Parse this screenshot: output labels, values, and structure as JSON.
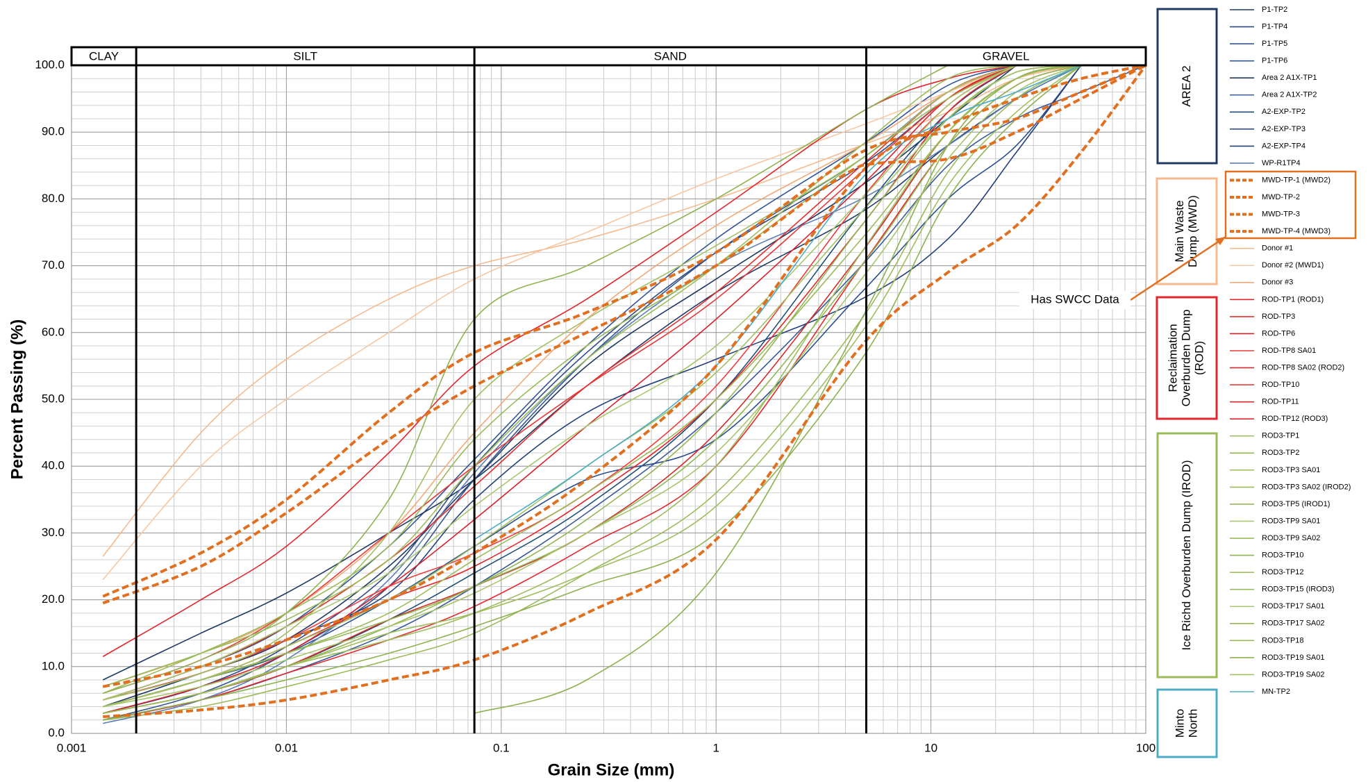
{
  "chart_data": {
    "type": "line",
    "x_label": "Grain Size (mm)",
    "y_label": "Percent Passing (%)",
    "x_log": true,
    "grid": true,
    "minor_grid": true,
    "xlim": [
      0.001,
      100
    ],
    "xticks": [
      0.001,
      0.01,
      0.1,
      1,
      10,
      100
    ],
    "ylim": [
      0,
      100
    ],
    "yticks": [
      {
        "value": 0,
        "label": "0.0"
      },
      {
        "value": 10,
        "label": "10.0"
      },
      {
        "value": 20,
        "label": "20.0"
      },
      {
        "value": 30,
        "label": "30.0"
      },
      {
        "value": 40,
        "label": "40.0"
      },
      {
        "value": 50,
        "label": "50.0"
      },
      {
        "value": 60,
        "label": "60.0"
      },
      {
        "value": 70,
        "label": "70.0"
      },
      {
        "value": 80,
        "label": "80.0"
      },
      {
        "value": 90,
        "label": "90.0"
      },
      {
        "value": 100,
        "label": "100.0"
      }
    ],
    "zones": [
      "CLAY",
      "SILT",
      "SAND",
      "GRAVEL"
    ],
    "zone_boundaries": [
      0.002,
      0.075,
      5
    ],
    "annotation": "Has SWCC Data",
    "legend_groups": [
      {
        "label": [
          "AREA 2"
        ]
      },
      {
        "label": [
          "Main Waste",
          "Dump (MWD)"
        ]
      },
      {
        "label": [
          "Reclaimation",
          "Overburden Dump",
          "(ROD)"
        ]
      },
      {
        "label": [
          "Ice Richd Overburden Dump (IROD)"
        ]
      },
      {
        "label": [
          "Minto",
          "North"
        ]
      }
    ],
    "x": [
      0.0014,
      0.004,
      0.01,
      0.03,
      0.075,
      0.25,
      1,
      4.75,
      12,
      25,
      50,
      100
    ],
    "series": [
      {
        "name": "P1-TP2",
        "color": "#1f3864",
        "values": [
          4,
          9,
          14,
          25,
          38,
          55,
          68,
          82,
          92,
          100,
          null,
          null
        ]
      },
      {
        "name": "P1-TP4",
        "color": "#2e4a86",
        "values": [
          3,
          7,
          13,
          24,
          40,
          57,
          72,
          85,
          95,
          100,
          null,
          null
        ]
      },
      {
        "name": "P1-TP5",
        "color": "#34558f",
        "values": [
          2,
          6,
          12,
          22,
          38,
          56,
          72,
          86,
          96,
          100,
          null,
          null
        ]
      },
      {
        "name": "P1-TP6",
        "color": "#2f5597",
        "values": [
          5,
          10,
          16,
          28,
          41,
          58,
          74,
          88,
          97,
          100,
          null,
          null
        ]
      },
      {
        "name": "Area 2 A1X-TP1",
        "color": "#203864",
        "values": [
          8,
          15,
          21,
          30,
          38,
          52,
          66,
          78,
          88,
          95,
          100,
          null
        ]
      },
      {
        "name": "Area 2 A1X-TP2",
        "color": "#3b5a9a",
        "values": [
          2,
          5,
          9,
          15,
          22,
          33,
          48,
          70,
          85,
          92,
          96,
          100
        ]
      },
      {
        "name": "A2-EXP-TP2",
        "color": "#1f4e79",
        "values": [
          3,
          6,
          10,
          17,
          24,
          34,
          50,
          78,
          93,
          100,
          null,
          null
        ]
      },
      {
        "name": "A2-EXP-TP3",
        "color": "#2a4d8f",
        "values": [
          4,
          8,
          12,
          20,
          28,
          38,
          44,
          66,
          80,
          88,
          100,
          null
        ]
      },
      {
        "name": "A2-EXP-TP4",
        "color": "#24407a",
        "values": [
          5,
          9,
          14,
          21,
          35,
          48,
          56,
          65,
          74,
          87,
          100,
          null
        ]
      },
      {
        "name": "WP-R1TP4",
        "color": "#5b7fb5",
        "values": [
          1.5,
          5,
          11,
          23,
          39,
          56,
          70,
          80,
          88,
          95,
          100,
          null
        ]
      },
      {
        "name": "MWD-TP-1 (MWD2)",
        "color": "#e07020",
        "dashed": true,
        "values": [
          20.5,
          27,
          35,
          48,
          57,
          63,
          72,
          87,
          90,
          92,
          96,
          100
        ]
      },
      {
        "name": "MWD-TP-2",
        "color": "#e07020",
        "dashed": true,
        "values": [
          19.5,
          25,
          33,
          44,
          52,
          60,
          70,
          85,
          86,
          90,
          95,
          100
        ]
      },
      {
        "name": "MWD-TP-3",
        "color": "#e07020",
        "dashed": true,
        "values": [
          7,
          10,
          14,
          20,
          27,
          38,
          55,
          84,
          91,
          95,
          98,
          100
        ]
      },
      {
        "name": "MWD-TP-4 (MWD3)",
        "color": "#e07020",
        "dashed": true,
        "values": [
          2.5,
          3.5,
          5,
          8,
          11,
          18,
          29,
          58,
          69,
          76,
          87,
          100
        ]
      },
      {
        "name": "Donor #1",
        "color": "#f5b98c",
        "values": [
          26.5,
          45,
          56,
          65,
          70,
          74,
          80,
          88,
          93,
          98,
          100,
          null
        ]
      },
      {
        "name": "Donor #2 (MWD1)",
        "color": "#f8c7a2",
        "values": [
          23,
          40,
          50,
          60,
          68,
          75,
          83,
          91,
          96,
          100,
          null,
          null
        ]
      },
      {
        "name": "Donor #3",
        "color": "#f2a978",
        "values": [
          7,
          12,
          18,
          30,
          45,
          62,
          76,
          88,
          96,
          100,
          null,
          null
        ]
      },
      {
        "name": "ROD-TP1 (ROD1)",
        "color": "#e3262b",
        "values": [
          11.5,
          20,
          28,
          42,
          55,
          65,
          78,
          93,
          98,
          100,
          null,
          null
        ]
      },
      {
        "name": "ROD-TP3",
        "color": "#e0312f",
        "values": [
          5,
          10,
          16,
          26,
          37,
          52,
          66,
          85,
          96,
          100,
          null,
          null
        ]
      },
      {
        "name": "ROD-TP6",
        "color": "#d9202a",
        "values": [
          3,
          7,
          12,
          22,
          32,
          46,
          62,
          82,
          95,
          100,
          null,
          null
        ]
      },
      {
        "name": "ROD-TP8 SA01",
        "color": "#e8383a",
        "values": [
          6,
          11,
          18,
          30,
          40,
          52,
          65,
          84,
          95,
          100,
          null,
          null
        ]
      },
      {
        "name": "ROD-TP8 SA02 (ROD2)",
        "color": "#e3262b",
        "values": [
          4,
          8,
          13,
          20,
          25,
          35,
          50,
          76,
          93,
          100,
          null,
          null
        ]
      },
      {
        "name": "ROD-TP10",
        "color": "#ef3b3b",
        "values": [
          5,
          9,
          14,
          22,
          27,
          36,
          52,
          80,
          94,
          100,
          null,
          null
        ]
      },
      {
        "name": "ROD-TP11",
        "color": "#d42a2a",
        "values": [
          3,
          6,
          10,
          17,
          22,
          30,
          45,
          72,
          90,
          98,
          100,
          null
        ]
      },
      {
        "name": "ROD-TP12 (ROD3)",
        "color": "#e5282e",
        "values": [
          2,
          5,
          9,
          14,
          19,
          28,
          40,
          70,
          88,
          97,
          100,
          null
        ]
      },
      {
        "name": "ROD3-TP1",
        "color": "#9bbb59",
        "values": [
          7,
          12,
          17,
          26,
          40,
          56,
          70,
          88,
          98,
          100,
          null,
          null
        ]
      },
      {
        "name": "ROD3-TP2",
        "color": "#8fb350",
        "values": [
          6,
          11,
          18,
          35,
          62,
          70,
          80,
          93,
          100,
          null,
          null,
          null
        ]
      },
      {
        "name": "ROD3-TP3 SA01",
        "color": "#a3c063",
        "values": [
          5,
          9,
          15,
          30,
          50,
          62,
          73,
          86,
          96,
          100,
          null,
          null
        ]
      },
      {
        "name": "ROD3-TP3 SA02 (IROD2)",
        "color": "#9bbb59",
        "values": [
          4,
          8,
          12,
          18,
          26,
          36,
          50,
          74,
          90,
          98,
          100,
          null
        ]
      },
      {
        "name": "ROD3-TP5 (IROD1)",
        "color": "#92b856",
        "values": [
          3,
          6,
          10,
          16,
          22,
          30,
          44,
          70,
          88,
          97,
          100,
          null
        ]
      },
      {
        "name": "ROD3-TP9 SA01",
        "color": "#a6c46a",
        "values": [
          4,
          7,
          11,
          16,
          21,
          30,
          42,
          68,
          86,
          96,
          100,
          null
        ]
      },
      {
        "name": "ROD3-TP9 SA02",
        "color": "#9bbb59",
        "values": [
          2,
          4,
          7,
          11,
          15,
          24,
          36,
          62,
          84,
          95,
          100,
          null
        ]
      },
      {
        "name": "ROD3-TP10",
        "color": "#8db14e",
        "values": [
          null,
          null,
          null,
          null,
          3,
          8,
          24,
          62,
          88,
          98,
          100,
          null
        ]
      },
      {
        "name": "ROD3-TP12",
        "color": "#9fbe5e",
        "values": [
          3,
          6,
          10,
          15,
          18,
          24,
          34,
          60,
          82,
          93,
          100,
          null
        ]
      },
      {
        "name": "ROD3-TP15 (IROD3)",
        "color": "#98ba57",
        "values": [
          6,
          12,
          18,
          28,
          44,
          58,
          70,
          86,
          95,
          100,
          null,
          null
        ]
      },
      {
        "name": "ROD3-TP17 SA01",
        "color": "#a8c66d",
        "values": [
          5,
          10,
          16,
          24,
          34,
          46,
          58,
          80,
          94,
          100,
          null,
          null
        ]
      },
      {
        "name": "ROD3-TP17 SA02",
        "color": "#93b654",
        "values": [
          4,
          8,
          12,
          17,
          22,
          32,
          48,
          76,
          92,
          99,
          100,
          null
        ]
      },
      {
        "name": "ROD3-TP18",
        "color": "#9bbb59",
        "values": [
          3,
          6,
          10,
          14,
          18,
          26,
          40,
          72,
          90,
          98,
          100,
          null
        ]
      },
      {
        "name": "ROD3-TP19 SA01",
        "color": "#8cb24f",
        "values": [
          2,
          5,
          8,
          12,
          16,
          22,
          30,
          56,
          80,
          92,
          100,
          null
        ]
      },
      {
        "name": "ROD3-TP19 SA02",
        "color": "#a2c162",
        "values": [
          4,
          8,
          13,
          20,
          28,
          40,
          54,
          78,
          92,
          99,
          100,
          null
        ]
      },
      {
        "name": "MN-TP2",
        "color": "#4bacc6",
        "values": [
          null,
          null,
          null,
          null,
          29,
          40,
          55,
          83,
          92,
          96,
          100,
          null
        ]
      }
    ]
  }
}
